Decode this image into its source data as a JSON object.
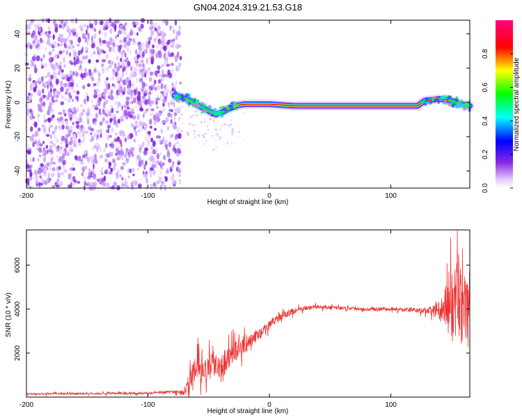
{
  "title": "GN04.2024.319.21.53.G18",
  "chart_data": [
    {
      "type": "heatmap",
      "xlabel": "Height of straight line (km)",
      "ylabel": "Frequency (Hz)",
      "xlim": [
        -200,
        165
      ],
      "ylim": [
        -50,
        48
      ],
      "xticks": [
        -200,
        -100,
        0,
        100
      ],
      "yticks": [
        -40,
        -20,
        0,
        20,
        40
      ],
      "grid": false,
      "noise_region_x": [
        -200,
        -73
      ],
      "signal_track": {
        "x": [
          -78,
          -72,
          -65,
          -58,
          -50,
          -44,
          -40,
          -34,
          -28,
          -20,
          -10,
          0,
          20,
          60,
          100,
          122,
          128,
          140,
          150,
          158,
          165
        ],
        "y": [
          4,
          3,
          1,
          -2,
          -5,
          -7,
          -6,
          -4,
          -2,
          -1,
          -1,
          -1,
          -2,
          -2,
          -2,
          -2,
          1,
          2,
          1,
          -1,
          -2
        ]
      },
      "colorbar": {
        "label": "Normalized spectral amplitude",
        "range": [
          0,
          1
        ],
        "ticks": [
          0.0,
          0.2,
          0.4,
          0.6,
          0.8
        ],
        "tick_labels": [
          "0.0",
          "0.2",
          "0.4",
          "0.6",
          "0.8"
        ],
        "colormap": [
          "#ffffff",
          "#e6ccff",
          "#8a2be2",
          "#0000ff",
          "#00ffff",
          "#00ff00",
          "#ffff00",
          "#ff0000",
          "#ff0080"
        ]
      }
    },
    {
      "type": "line",
      "xlabel": "Height of straight line (km)",
      "ylabel": "SNR (10 * v/v)",
      "xlim": [
        -200,
        165
      ],
      "ylim": [
        0,
        7600
      ],
      "xticks": [
        -200,
        -100,
        0,
        100
      ],
      "yticks": [
        2000,
        4000,
        6000
      ],
      "grid": false,
      "series": [
        {
          "color": "#ee3333",
          "x": [
            -200,
            -150,
            -100,
            -80,
            -70,
            -65,
            -60,
            -55,
            -50,
            -45,
            -40,
            -35,
            -30,
            -25,
            -20,
            -15,
            -10,
            -5,
            0,
            10,
            20,
            30,
            40,
            60,
            80,
            100,
            120,
            130,
            140,
            145,
            150,
            155,
            160,
            165
          ],
          "y": [
            150,
            160,
            180,
            250,
            200,
            800,
            1400,
            1100,
            1300,
            1600,
            1400,
            1800,
            2000,
            2200,
            2400,
            2600,
            2800,
            3000,
            3300,
            3700,
            3900,
            4050,
            4100,
            4050,
            4000,
            4000,
            3950,
            3900,
            3950,
            4000,
            4200,
            4500,
            4000,
            3600
          ],
          "spread": [
            60,
            60,
            70,
            100,
            150,
            600,
            900,
            700,
            800,
            900,
            800,
            800,
            700,
            600,
            600,
            500,
            400,
            300,
            300,
            250,
            200,
            150,
            120,
            120,
            120,
            120,
            140,
            200,
            600,
            1500,
            2200,
            2500,
            2300,
            2200
          ]
        }
      ]
    }
  ]
}
